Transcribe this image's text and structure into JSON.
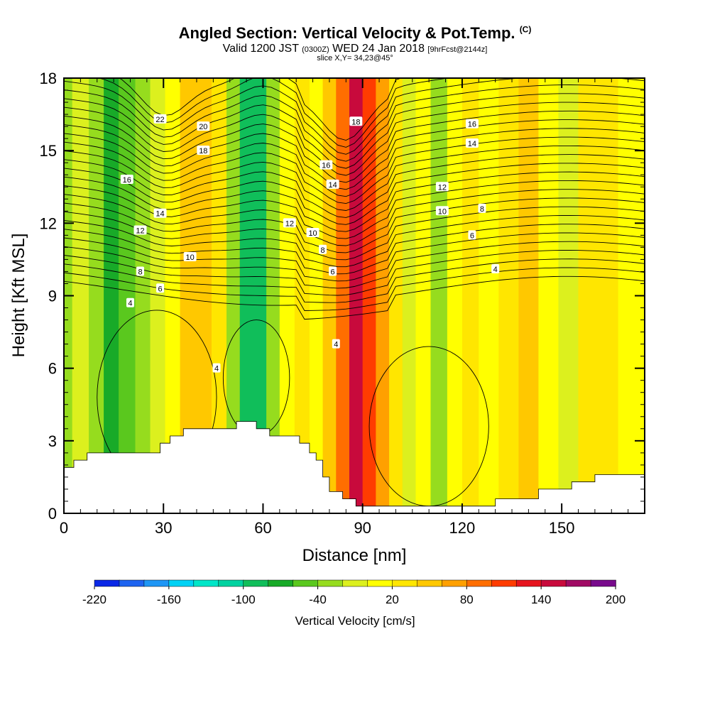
{
  "header": {
    "title": "Angled Section: Vertical Velocity & Pot.Temp.",
    "title_unit": "(C)",
    "valid_prefix": "Valid 1200 JST",
    "valid_zulu": "(0300Z)",
    "valid_date": "WED 24 Jan 2018",
    "forecast": "[9hrFcst@2144z]",
    "slice": "slice X,Y= 34,23@45°"
  },
  "chart_data": {
    "type": "heatmap",
    "xlabel": "Distance [nm]",
    "ylabel": "Height [Kft MSL]",
    "xlim": [
      0,
      175
    ],
    "ylim": [
      0,
      18
    ],
    "x_ticks": [
      0,
      30,
      60,
      90,
      120,
      150
    ],
    "y_ticks": [
      0,
      3,
      6,
      9,
      12,
      15,
      18
    ],
    "vertical_velocity_columns": [
      {
        "x": 0,
        "w": -25
      },
      {
        "x": 5,
        "w": -10
      },
      {
        "x": 10,
        "w": -35
      },
      {
        "x": 14,
        "w": -65
      },
      {
        "x": 19,
        "w": -60
      },
      {
        "x": 24,
        "w": -40
      },
      {
        "x": 28,
        "w": -10
      },
      {
        "x": 33,
        "w": 15
      },
      {
        "x": 37,
        "w": 40
      },
      {
        "x": 42,
        "w": 55
      },
      {
        "x": 47,
        "w": 30
      },
      {
        "x": 51,
        "w": -40
      },
      {
        "x": 55,
        "w": -95
      },
      {
        "x": 59,
        "w": -90
      },
      {
        "x": 63,
        "w": -40
      },
      {
        "x": 67,
        "w": 10
      },
      {
        "x": 72,
        "w": 25
      },
      {
        "x": 76,
        "w": 15
      },
      {
        "x": 80,
        "w": 40
      },
      {
        "x": 84,
        "w": 90
      },
      {
        "x": 88,
        "w": 140
      },
      {
        "x": 92,
        "w": 110
      },
      {
        "x": 96,
        "w": 60
      },
      {
        "x": 100,
        "w": 20
      },
      {
        "x": 104,
        "w": -15
      },
      {
        "x": 108,
        "w": 0
      },
      {
        "x": 113,
        "w": -35
      },
      {
        "x": 118,
        "w": 5
      },
      {
        "x": 122,
        "w": 25
      },
      {
        "x": 128,
        "w": 10
      },
      {
        "x": 134,
        "w": 25
      },
      {
        "x": 140,
        "w": 40
      },
      {
        "x": 146,
        "w": 15
      },
      {
        "x": 152,
        "w": -10
      },
      {
        "x": 158,
        "w": 20
      },
      {
        "x": 164,
        "w": 25
      },
      {
        "x": 170,
        "w": 15
      },
      {
        "x": 175,
        "w": 10
      }
    ],
    "terrain": [
      {
        "x": 0,
        "h": 1.9
      },
      {
        "x": 3,
        "h": 2.2
      },
      {
        "x": 7,
        "h": 2.5
      },
      {
        "x": 29,
        "h": 2.9
      },
      {
        "x": 32,
        "h": 3.2
      },
      {
        "x": 36,
        "h": 3.5
      },
      {
        "x": 52,
        "h": 3.8
      },
      {
        "x": 58,
        "h": 3.5
      },
      {
        "x": 62,
        "h": 3.2
      },
      {
        "x": 71,
        "h": 2.9
      },
      {
        "x": 74,
        "h": 2.5
      },
      {
        "x": 76,
        "h": 2.2
      },
      {
        "x": 78,
        "h": 1.5
      },
      {
        "x": 80,
        "h": 0.9
      },
      {
        "x": 84,
        "h": 0.6
      },
      {
        "x": 88,
        "h": 0.3
      },
      {
        "x": 130,
        "h": 0.6
      },
      {
        "x": 143,
        "h": 1.0
      },
      {
        "x": 153,
        "h": 1.3
      },
      {
        "x": 160,
        "h": 1.6
      },
      {
        "x": 175,
        "h": 1.6
      }
    ],
    "contour_labels": [
      {
        "text": "22",
        "x": 29,
        "y": 16.3
      },
      {
        "text": "20",
        "x": 42,
        "y": 16.0
      },
      {
        "text": "18",
        "x": 42,
        "y": 15.0
      },
      {
        "text": "16",
        "x": 19,
        "y": 13.8
      },
      {
        "text": "14",
        "x": 29,
        "y": 12.4
      },
      {
        "text": "12",
        "x": 23,
        "y": 11.7
      },
      {
        "text": "10",
        "x": 38,
        "y": 10.6
      },
      {
        "text": "8",
        "x": 23,
        "y": 10.0
      },
      {
        "text": "6",
        "x": 29,
        "y": 9.3
      },
      {
        "text": "4",
        "x": 20,
        "y": 8.7
      },
      {
        "text": "4",
        "x": 46,
        "y": 6.0
      },
      {
        "text": "12",
        "x": 68,
        "y": 12.0
      },
      {
        "text": "10",
        "x": 75,
        "y": 11.6
      },
      {
        "text": "8",
        "x": 78,
        "y": 10.9
      },
      {
        "text": "6",
        "x": 81,
        "y": 10.0
      },
      {
        "text": "16",
        "x": 79,
        "y": 14.4
      },
      {
        "text": "14",
        "x": 81,
        "y": 13.6
      },
      {
        "text": "18",
        "x": 88,
        "y": 16.2
      },
      {
        "text": "4",
        "x": 82,
        "y": 7.0
      },
      {
        "text": "12",
        "x": 114,
        "y": 13.5
      },
      {
        "text": "10",
        "x": 114,
        "y": 12.5
      },
      {
        "text": "8",
        "x": 126,
        "y": 12.6
      },
      {
        "text": "6",
        "x": 123,
        "y": 11.5
      },
      {
        "text": "4",
        "x": 130,
        "y": 10.1
      },
      {
        "text": "16",
        "x": 123,
        "y": 16.1
      },
      {
        "text": "14",
        "x": 123,
        "y": 15.3
      }
    ],
    "colorbar": {
      "label": "Vertical Velocity [cm/s]",
      "min": -220,
      "max": 200,
      "step": 20,
      "tick_labels": [
        "-220",
        "-160",
        "-100",
        "-40",
        "20",
        "80",
        "140",
        "200"
      ],
      "colors": [
        "#0a28e6",
        "#1e64f0",
        "#1e96f5",
        "#00d2f5",
        "#00e6c8",
        "#00d2a0",
        "#10be5a",
        "#18aa28",
        "#5ac81e",
        "#96dc1e",
        "#dcf01e",
        "#ffff00",
        "#ffe600",
        "#ffc800",
        "#ffa000",
        "#ff6e00",
        "#ff3c00",
        "#e6141e",
        "#c80a3c",
        "#a00a64",
        "#780a8c"
      ]
    }
  }
}
